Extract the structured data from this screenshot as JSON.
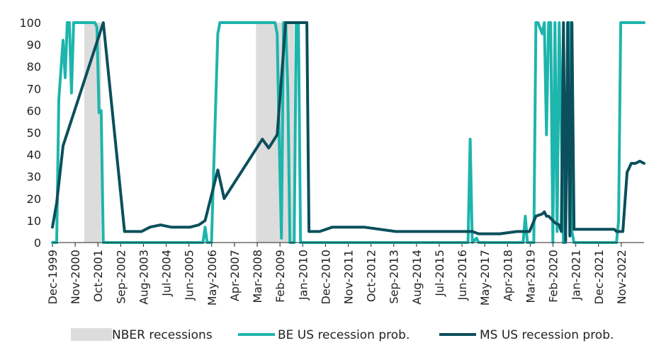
{
  "chart_data": {
    "type": "line",
    "title": "",
    "xlabel": "",
    "ylabel": "",
    "ylim": [
      0,
      100
    ],
    "yticks": [
      0,
      10,
      20,
      30,
      40,
      50,
      60,
      70,
      80,
      90,
      100
    ],
    "xlim": [
      "1999-12",
      "2023-03"
    ],
    "xtick_labels": [
      "Dec-1999",
      "Nov-2000",
      "Oct-2001",
      "Sep-2002",
      "Aug-2003",
      "Jul-2004",
      "Jun-2005",
      "May-2006",
      "Apr-2007",
      "Mar-2008",
      "Feb-2009",
      "Jan-2010",
      "Dec-2010",
      "Nov-2011",
      "Oct-2012",
      "Sep-2013",
      "Aug-2014",
      "Jul-2015",
      "Jun-2016",
      "May-2017",
      "Apr-2018",
      "Mar-2019",
      "Feb-2020",
      "Jan-2021",
      "Dec-2021",
      "Nov-2022"
    ],
    "grid": false,
    "legend_position": "bottom",
    "recessions": [
      {
        "start": "2001-03",
        "end": "2001-11"
      },
      {
        "start": "2007-12",
        "end": "2009-06"
      }
    ],
    "series": [
      {
        "name": "NBER recessions",
        "kind": "shaded-area",
        "color": "#dcdcdc"
      },
      {
        "name": "BE US recession prob.",
        "kind": "line",
        "color": "#1db5ac",
        "points": [
          [
            "1999-12",
            0
          ],
          [
            "2000-02",
            0
          ],
          [
            "2000-03",
            65
          ],
          [
            "2000-05",
            92
          ],
          [
            "2000-06",
            75
          ],
          [
            "2000-07",
            100
          ],
          [
            "2000-08",
            100
          ],
          [
            "2000-09",
            68
          ],
          [
            "2000-10",
            100
          ],
          [
            "2001-08",
            100
          ],
          [
            "2001-09",
            98
          ],
          [
            "2001-10",
            59
          ],
          [
            "2001-11",
            60
          ],
          [
            "2001-12",
            0
          ],
          [
            "2005-11",
            0
          ],
          [
            "2005-12",
            7
          ],
          [
            "2006-01",
            0
          ],
          [
            "2006-03",
            0
          ],
          [
            "2006-06",
            95
          ],
          [
            "2006-07",
            100
          ],
          [
            "2008-09",
            100
          ],
          [
            "2008-10",
            95
          ],
          [
            "2008-11",
            45
          ],
          [
            "2008-12",
            2
          ],
          [
            "2009-01",
            100
          ],
          [
            "2009-02",
            100
          ],
          [
            "2009-03",
            70
          ],
          [
            "2009-04",
            0
          ],
          [
            "2009-06",
            0
          ],
          [
            "2009-07",
            100
          ],
          [
            "2009-08",
            100
          ],
          [
            "2009-09",
            0
          ],
          [
            "2016-04",
            0
          ],
          [
            "2016-05",
            47
          ],
          [
            "2016-06",
            0
          ],
          [
            "2016-08",
            2
          ],
          [
            "2016-09",
            0
          ],
          [
            "2018-06",
            0
          ],
          [
            "2018-07",
            12
          ],
          [
            "2018-08",
            0
          ],
          [
            "2018-11",
            0
          ],
          [
            "2018-12",
            100
          ],
          [
            "2019-01",
            100
          ],
          [
            "2019-03",
            95
          ],
          [
            "2019-04",
            100
          ],
          [
            "2019-05",
            49
          ],
          [
            "2019-06",
            100
          ],
          [
            "2019-07",
            100
          ],
          [
            "2019-08",
            0
          ],
          [
            "2019-09",
            100
          ],
          [
            "2019-10",
            5
          ],
          [
            "2019-11",
            100
          ],
          [
            "2020-01",
            0
          ],
          [
            "2020-02",
            0
          ],
          [
            "2020-03",
            100
          ],
          [
            "2020-04",
            100
          ],
          [
            "2020-05",
            5
          ],
          [
            "2020-06",
            0
          ],
          [
            "2022-02",
            0
          ],
          [
            "2022-03",
            10
          ],
          [
            "2022-04",
            100
          ],
          [
            "2023-03",
            100
          ]
        ]
      },
      {
        "name": "MS US recession prob.",
        "kind": "line",
        "color": "#0b4f5c",
        "points": [
          [
            "1999-12",
            7
          ],
          [
            "2000-02",
            18
          ],
          [
            "2000-05",
            44
          ],
          [
            "2001-12",
            100
          ],
          [
            "2002-10",
            5
          ],
          [
            "2003-06",
            5
          ],
          [
            "2003-10",
            7
          ],
          [
            "2004-03",
            8
          ],
          [
            "2004-08",
            7
          ],
          [
            "2005-05",
            7
          ],
          [
            "2005-09",
            8
          ],
          [
            "2005-12",
            10
          ],
          [
            "2006-06",
            33
          ],
          [
            "2006-09",
            20
          ],
          [
            "2008-03",
            47
          ],
          [
            "2008-06",
            43
          ],
          [
            "2008-10",
            49
          ],
          [
            "2009-02",
            100
          ],
          [
            "2009-08",
            100
          ],
          [
            "2009-12",
            100
          ],
          [
            "2010-01",
            5
          ],
          [
            "2010-06",
            5
          ],
          [
            "2010-12",
            7
          ],
          [
            "2012-03",
            7
          ],
          [
            "2013-06",
            5
          ],
          [
            "2014-06",
            5
          ],
          [
            "2016-02",
            5
          ],
          [
            "2016-06",
            5
          ],
          [
            "2016-09",
            4
          ],
          [
            "2017-01",
            4
          ],
          [
            "2017-05",
            4
          ],
          [
            "2017-07",
            4
          ],
          [
            "2018-03",
            5
          ],
          [
            "2018-09",
            5
          ],
          [
            "2018-12",
            12
          ],
          [
            "2019-03",
            13
          ],
          [
            "2019-04",
            14
          ],
          [
            "2019-05",
            12
          ],
          [
            "2019-06",
            12
          ],
          [
            "2019-09",
            9
          ],
          [
            "2019-11",
            8
          ],
          [
            "2019-12",
            5
          ],
          [
            "2020-01",
            100
          ],
          [
            "2020-02",
            1
          ],
          [
            "2020-03",
            100
          ],
          [
            "2020-04",
            3
          ],
          [
            "2020-05",
            100
          ],
          [
            "2020-06",
            6
          ],
          [
            "2021-05",
            6
          ],
          [
            "2022-01",
            6
          ],
          [
            "2022-02",
            5
          ],
          [
            "2022-05",
            5
          ],
          [
            "2022-07",
            32
          ],
          [
            "2022-08",
            34
          ],
          [
            "2022-09",
            36
          ],
          [
            "2022-11",
            36
          ],
          [
            "2023-01",
            37
          ],
          [
            "2023-03",
            36
          ]
        ]
      }
    ]
  }
}
